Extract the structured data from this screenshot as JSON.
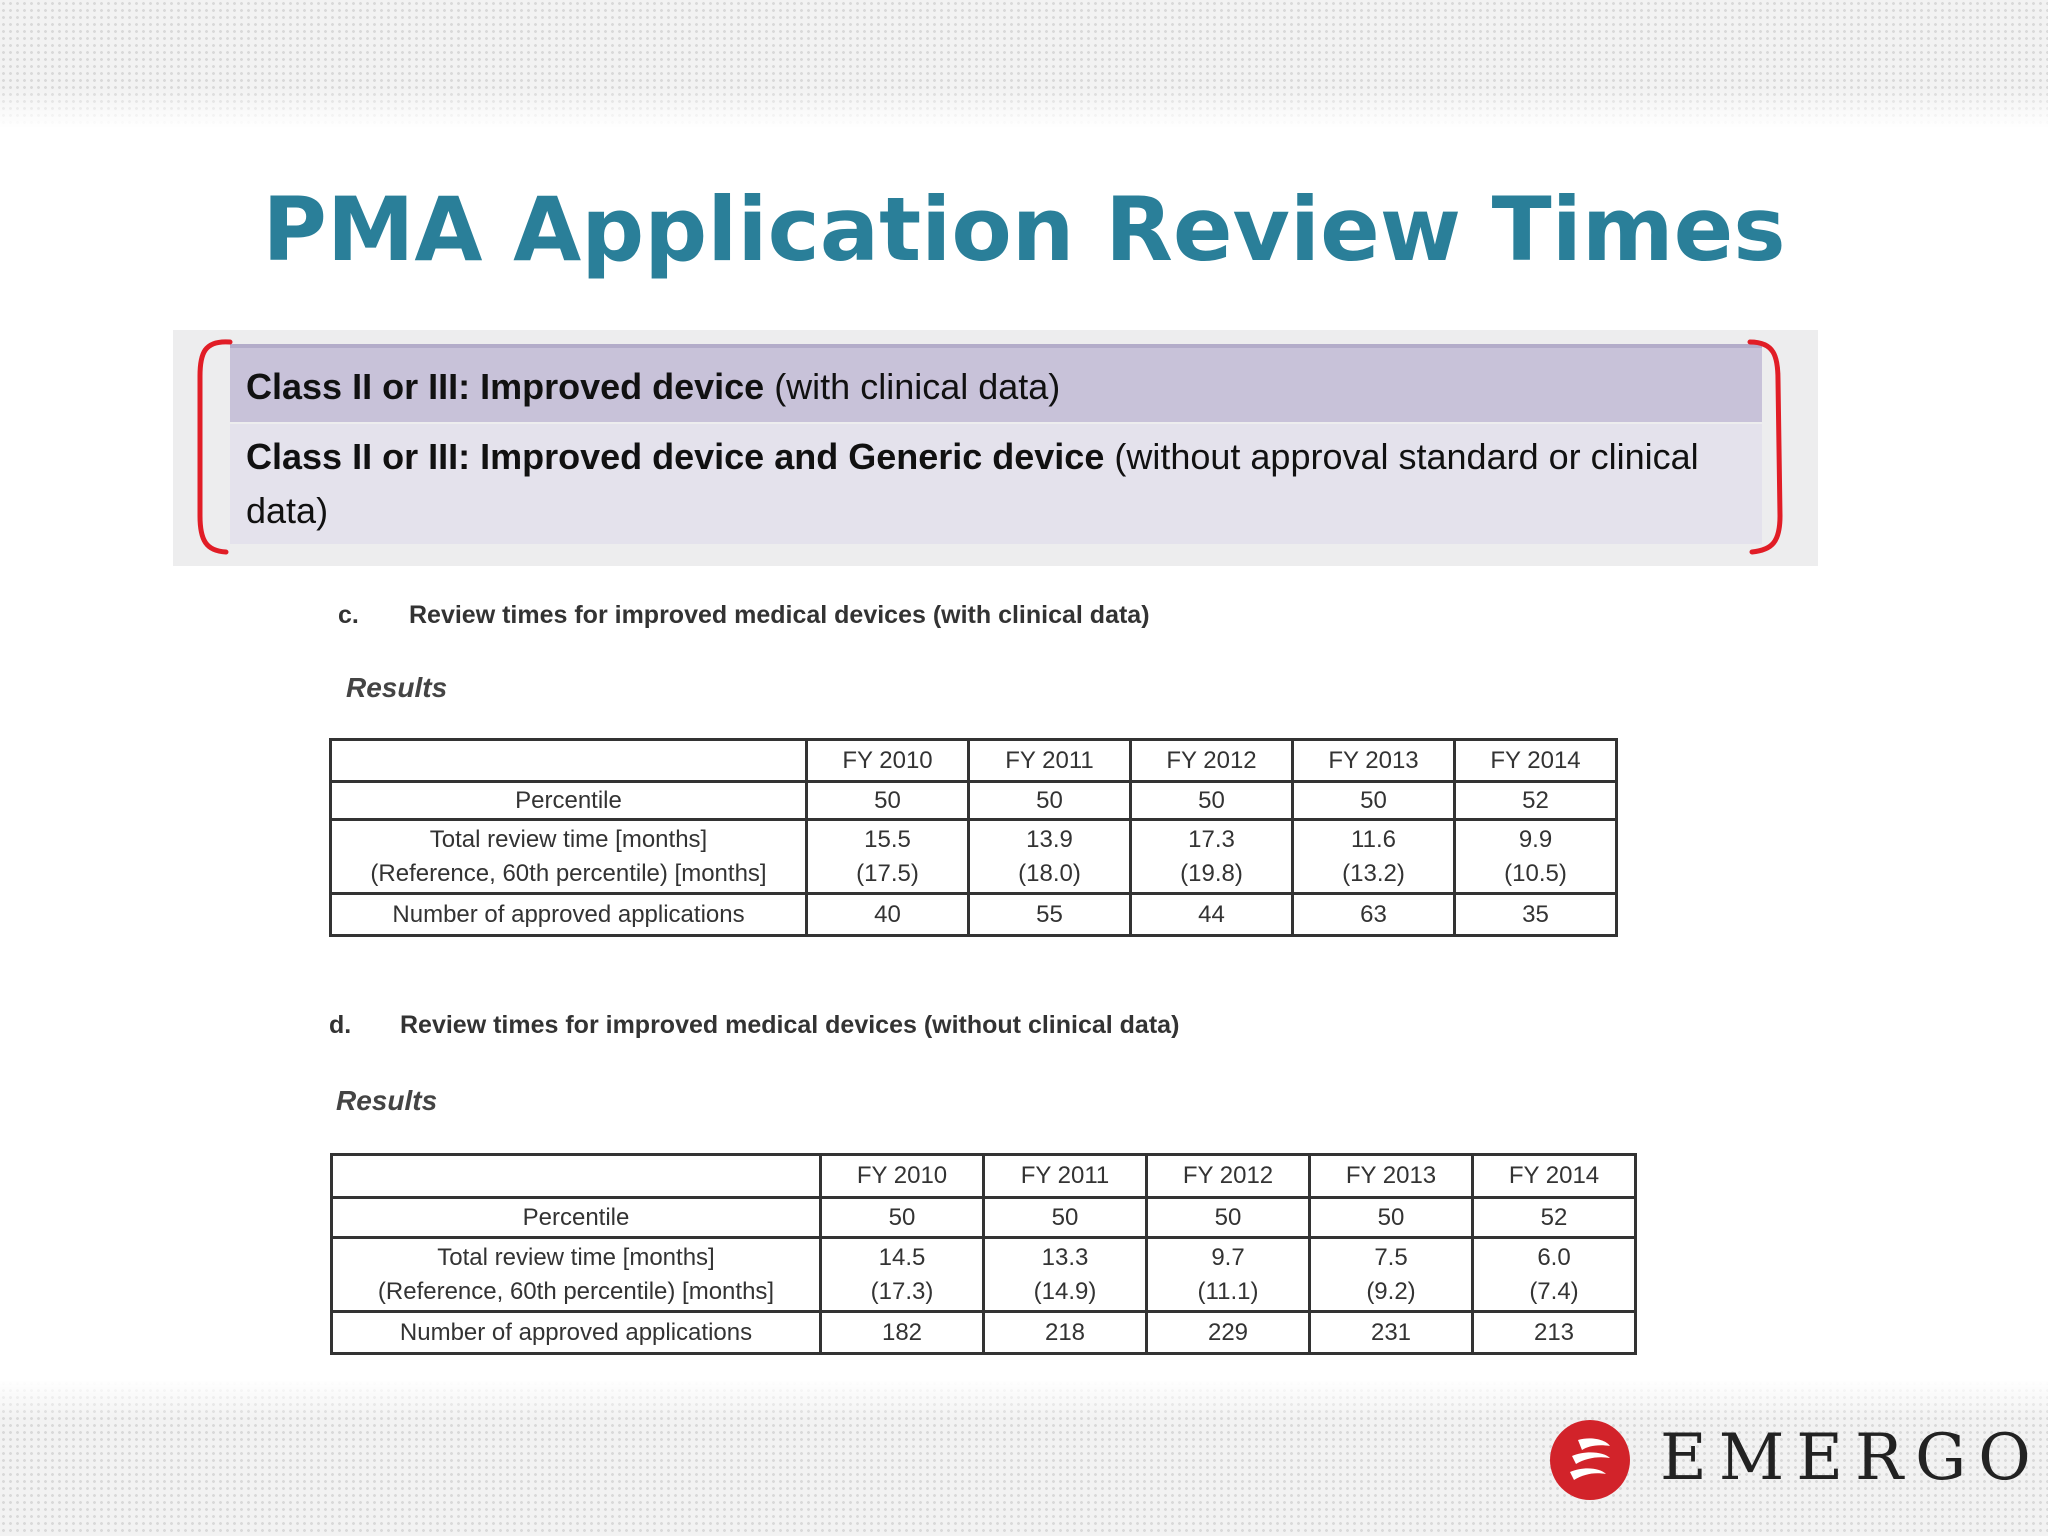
{
  "title": "PMA Application Review Times",
  "classes": [
    {
      "bold": "Class II or III: Improved device",
      "normal": " (with clinical data)"
    },
    {
      "bold": "Class II or III: Improved device and Generic device",
      "normal": " (without approval standard or clinical data)"
    }
  ],
  "sections": [
    {
      "letter": "c.",
      "heading": "Review times for improved medical devices (with clinical data)",
      "results_label": "Results",
      "table": {
        "columns": [
          "FY 2010",
          "FY 2011",
          "FY 2012",
          "FY 2013",
          "FY 2014"
        ],
        "rows": [
          {
            "label": [
              "Percentile"
            ],
            "values": [
              [
                "50"
              ],
              [
                "50"
              ],
              [
                "50"
              ],
              [
                "50"
              ],
              [
                "52"
              ]
            ]
          },
          {
            "label": [
              "Total review time [months]",
              "(Reference, 60th percentile) [months]"
            ],
            "values": [
              [
                "15.5",
                "(17.5)"
              ],
              [
                "13.9",
                "(18.0)"
              ],
              [
                "17.3",
                "(19.8)"
              ],
              [
                "11.6",
                "(13.2)"
              ],
              [
                "9.9",
                "(10.5)"
              ]
            ]
          },
          {
            "label": [
              "Number of approved applications"
            ],
            "values": [
              [
                "40"
              ],
              [
                "55"
              ],
              [
                "44"
              ],
              [
                "63"
              ],
              [
                "35"
              ]
            ]
          }
        ]
      }
    },
    {
      "letter": "d.",
      "heading": "Review times for improved medical devices (without clinical data)",
      "results_label": "Results",
      "table": {
        "columns": [
          "FY 2010",
          "FY 2011",
          "FY 2012",
          "FY 2013",
          "FY 2014"
        ],
        "rows": [
          {
            "label": [
              "Percentile"
            ],
            "values": [
              [
                "50"
              ],
              [
                "50"
              ],
              [
                "50"
              ],
              [
                "50"
              ],
              [
                "52"
              ]
            ]
          },
          {
            "label": [
              "Total review time [months]",
              "(Reference, 60th percentile) [months]"
            ],
            "values": [
              [
                "14.5",
                "(17.3)"
              ],
              [
                "13.3",
                "(14.9)"
              ],
              [
                "9.7",
                "(11.1)"
              ],
              [
                "7.5",
                "(9.2)"
              ],
              [
                "6.0",
                "(7.4)"
              ]
            ]
          },
          {
            "label": [
              "Number of approved applications"
            ],
            "values": [
              [
                "182"
              ],
              [
                "218"
              ],
              [
                "229"
              ],
              [
                "231"
              ],
              [
                "213"
              ]
            ]
          }
        ]
      }
    }
  ],
  "logo": {
    "text": "EMERGO",
    "color": "#d2232a"
  }
}
